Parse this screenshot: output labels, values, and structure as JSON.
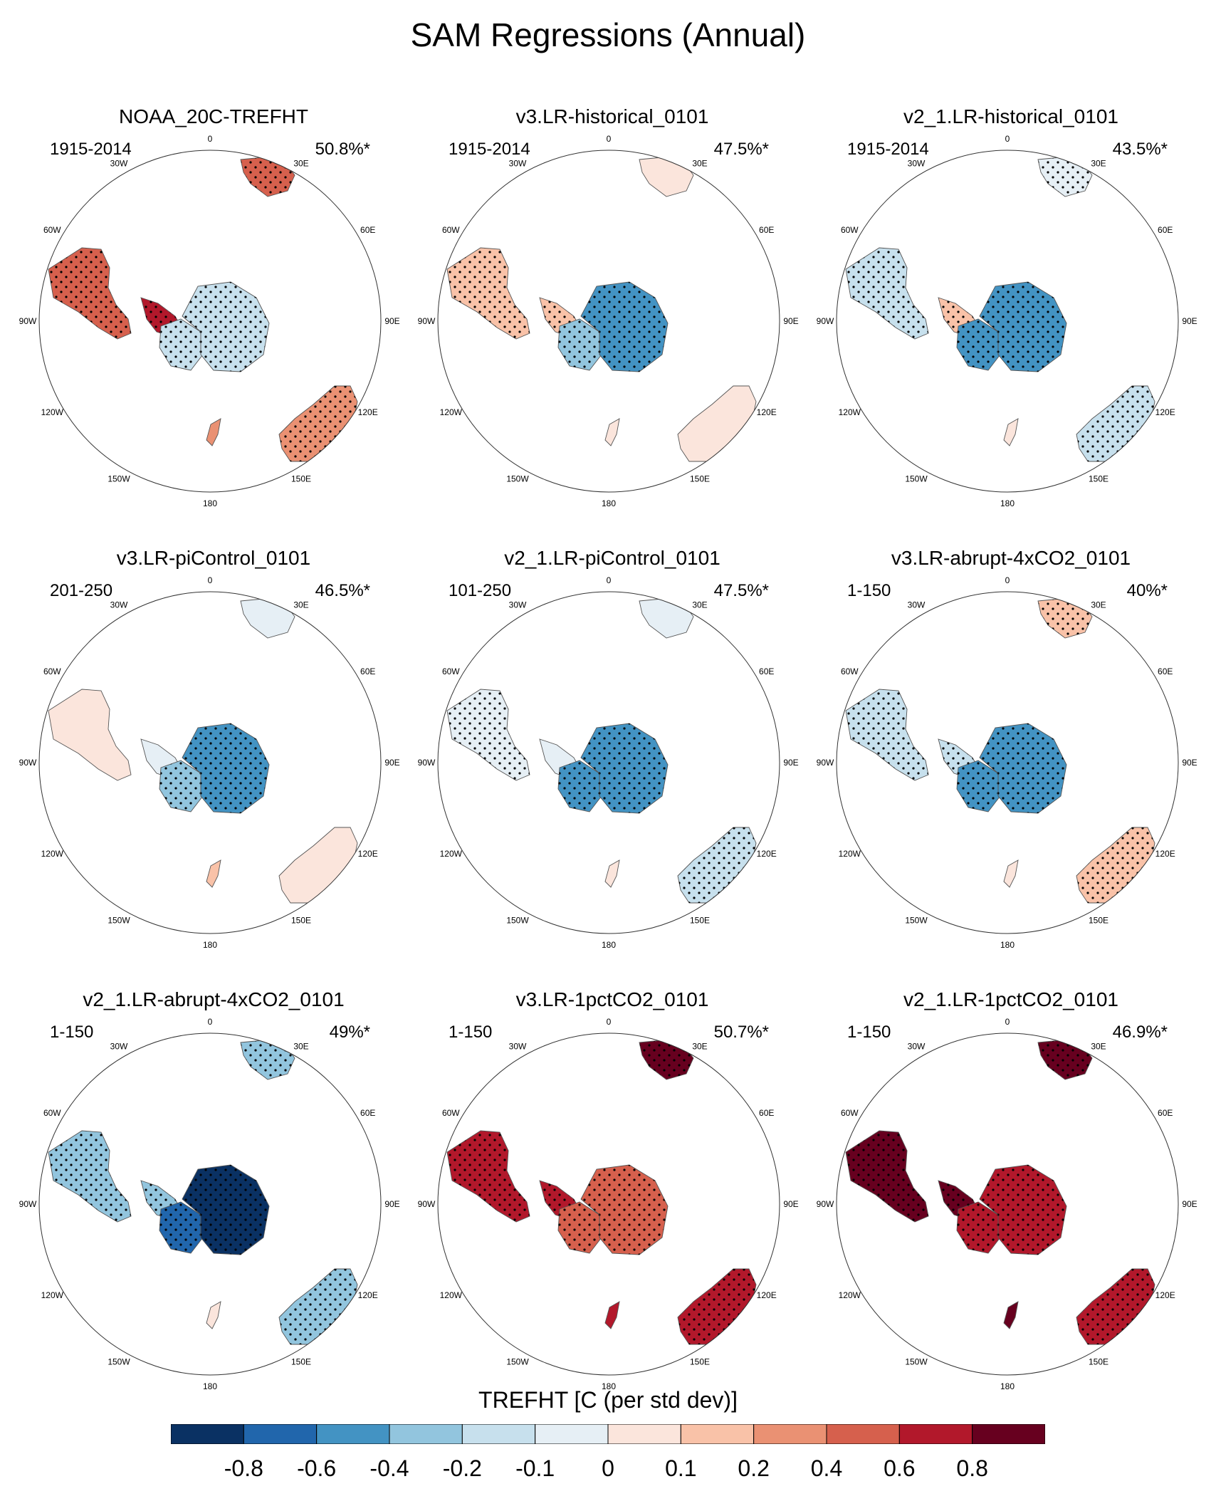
{
  "figure": {
    "title": "SAM Regressions (Annual)",
    "colorbar": {
      "title": "TREFHT [C (per std dev)]",
      "colors": [
        "#0a3163",
        "#2166ac",
        "#4393c3",
        "#92c5de",
        "#c7e0ed",
        "#e6eff5",
        "#fbe5dc",
        "#f9c2a8",
        "#ea9173",
        "#d6604d",
        "#b2182b",
        "#67001f"
      ],
      "tick_labels": [
        "-0.8",
        "-0.6",
        "-0.4",
        "-0.2",
        "-0.1",
        "0",
        "0.1",
        "0.2",
        "0.4",
        "0.6",
        "0.8"
      ]
    },
    "longitude_labels": [
      "0",
      "30E",
      "60E",
      "90E",
      "120E",
      "150E",
      "180",
      "150W",
      "120W",
      "90W",
      "60W",
      "30W"
    ]
  },
  "panels": [
    {
      "title": "NOAA_20C-TREFHT",
      "period": "1915-2014",
      "variance": "50.8%*",
      "anomaly": {
        "south_america": 0.5,
        "antarctic_peninsula": 0.7,
        "east_antarctica": -0.15,
        "west_antarctica": -0.2,
        "africa": 0.4,
        "australia": 0.35,
        "new_zealand": 0.2
      }
    },
    {
      "title": "v3.LR-historical_0101",
      "period": "1915-2014",
      "variance": "47.5%*",
      "anomaly": {
        "south_america": 0.1,
        "antarctic_peninsula": 0.15,
        "east_antarctica": -0.45,
        "west_antarctica": -0.35,
        "africa": 0.05,
        "australia": 0.05,
        "new_zealand": 0.0
      }
    },
    {
      "title": "v2_1.LR-historical_0101",
      "period": "1915-2014",
      "variance": "43.5%*",
      "anomaly": {
        "south_america": -0.15,
        "antarctic_peninsula": 0.1,
        "east_antarctica": -0.55,
        "west_antarctica": -0.45,
        "africa": -0.1,
        "australia": -0.15,
        "new_zealand": 0.0
      }
    },
    {
      "title": "v3.LR-piControl_0101",
      "period": "201-250",
      "variance": "46.5%*",
      "anomaly": {
        "south_america": 0.05,
        "antarctic_peninsula": -0.05,
        "east_antarctica": -0.5,
        "west_antarctica": -0.35,
        "africa": -0.05,
        "australia": 0.05,
        "new_zealand": 0.1
      }
    },
    {
      "title": "v2_1.LR-piControl_0101",
      "period": "101-250",
      "variance": "47.5%*",
      "anomaly": {
        "south_america": -0.1,
        "antarctic_peninsula": -0.05,
        "east_antarctica": -0.5,
        "west_antarctica": -0.45,
        "africa": -0.05,
        "australia": -0.15,
        "new_zealand": 0.0
      }
    },
    {
      "title": "v3.LR-abrupt-4xCO2_0101",
      "period": "1-150",
      "variance": "40%*",
      "anomaly": {
        "south_america": -0.15,
        "antarctic_peninsula": -0.2,
        "east_antarctica": -0.6,
        "west_antarctica": -0.5,
        "africa": 0.15,
        "australia": 0.1,
        "new_zealand": 0.0
      }
    },
    {
      "title": "v2_1.LR-abrupt-4xCO2_0101",
      "period": "1-150",
      "variance": "49%*",
      "anomaly": {
        "south_america": -0.3,
        "antarctic_peninsula": -0.35,
        "east_antarctica": -0.9,
        "west_antarctica": -0.7,
        "africa": -0.3,
        "australia": -0.35,
        "new_zealand": 0.0
      }
    },
    {
      "title": "v3.LR-1pctCO2_0101",
      "period": "1-150",
      "variance": "50.7%*",
      "anomaly": {
        "south_america": 0.65,
        "antarctic_peninsula": 0.7,
        "east_antarctica": 0.45,
        "west_antarctica": 0.5,
        "africa": 0.85,
        "australia": 0.65,
        "new_zealand": 0.7
      }
    },
    {
      "title": "v2_1.LR-1pctCO2_0101",
      "period": "1-150",
      "variance": "46.9%*",
      "anomaly": {
        "south_america": 0.85,
        "antarctic_peninsula": 0.85,
        "east_antarctica": 0.65,
        "west_antarctica": 0.7,
        "africa": 0.9,
        "australia": 0.75,
        "new_zealand": 0.8
      }
    }
  ]
}
